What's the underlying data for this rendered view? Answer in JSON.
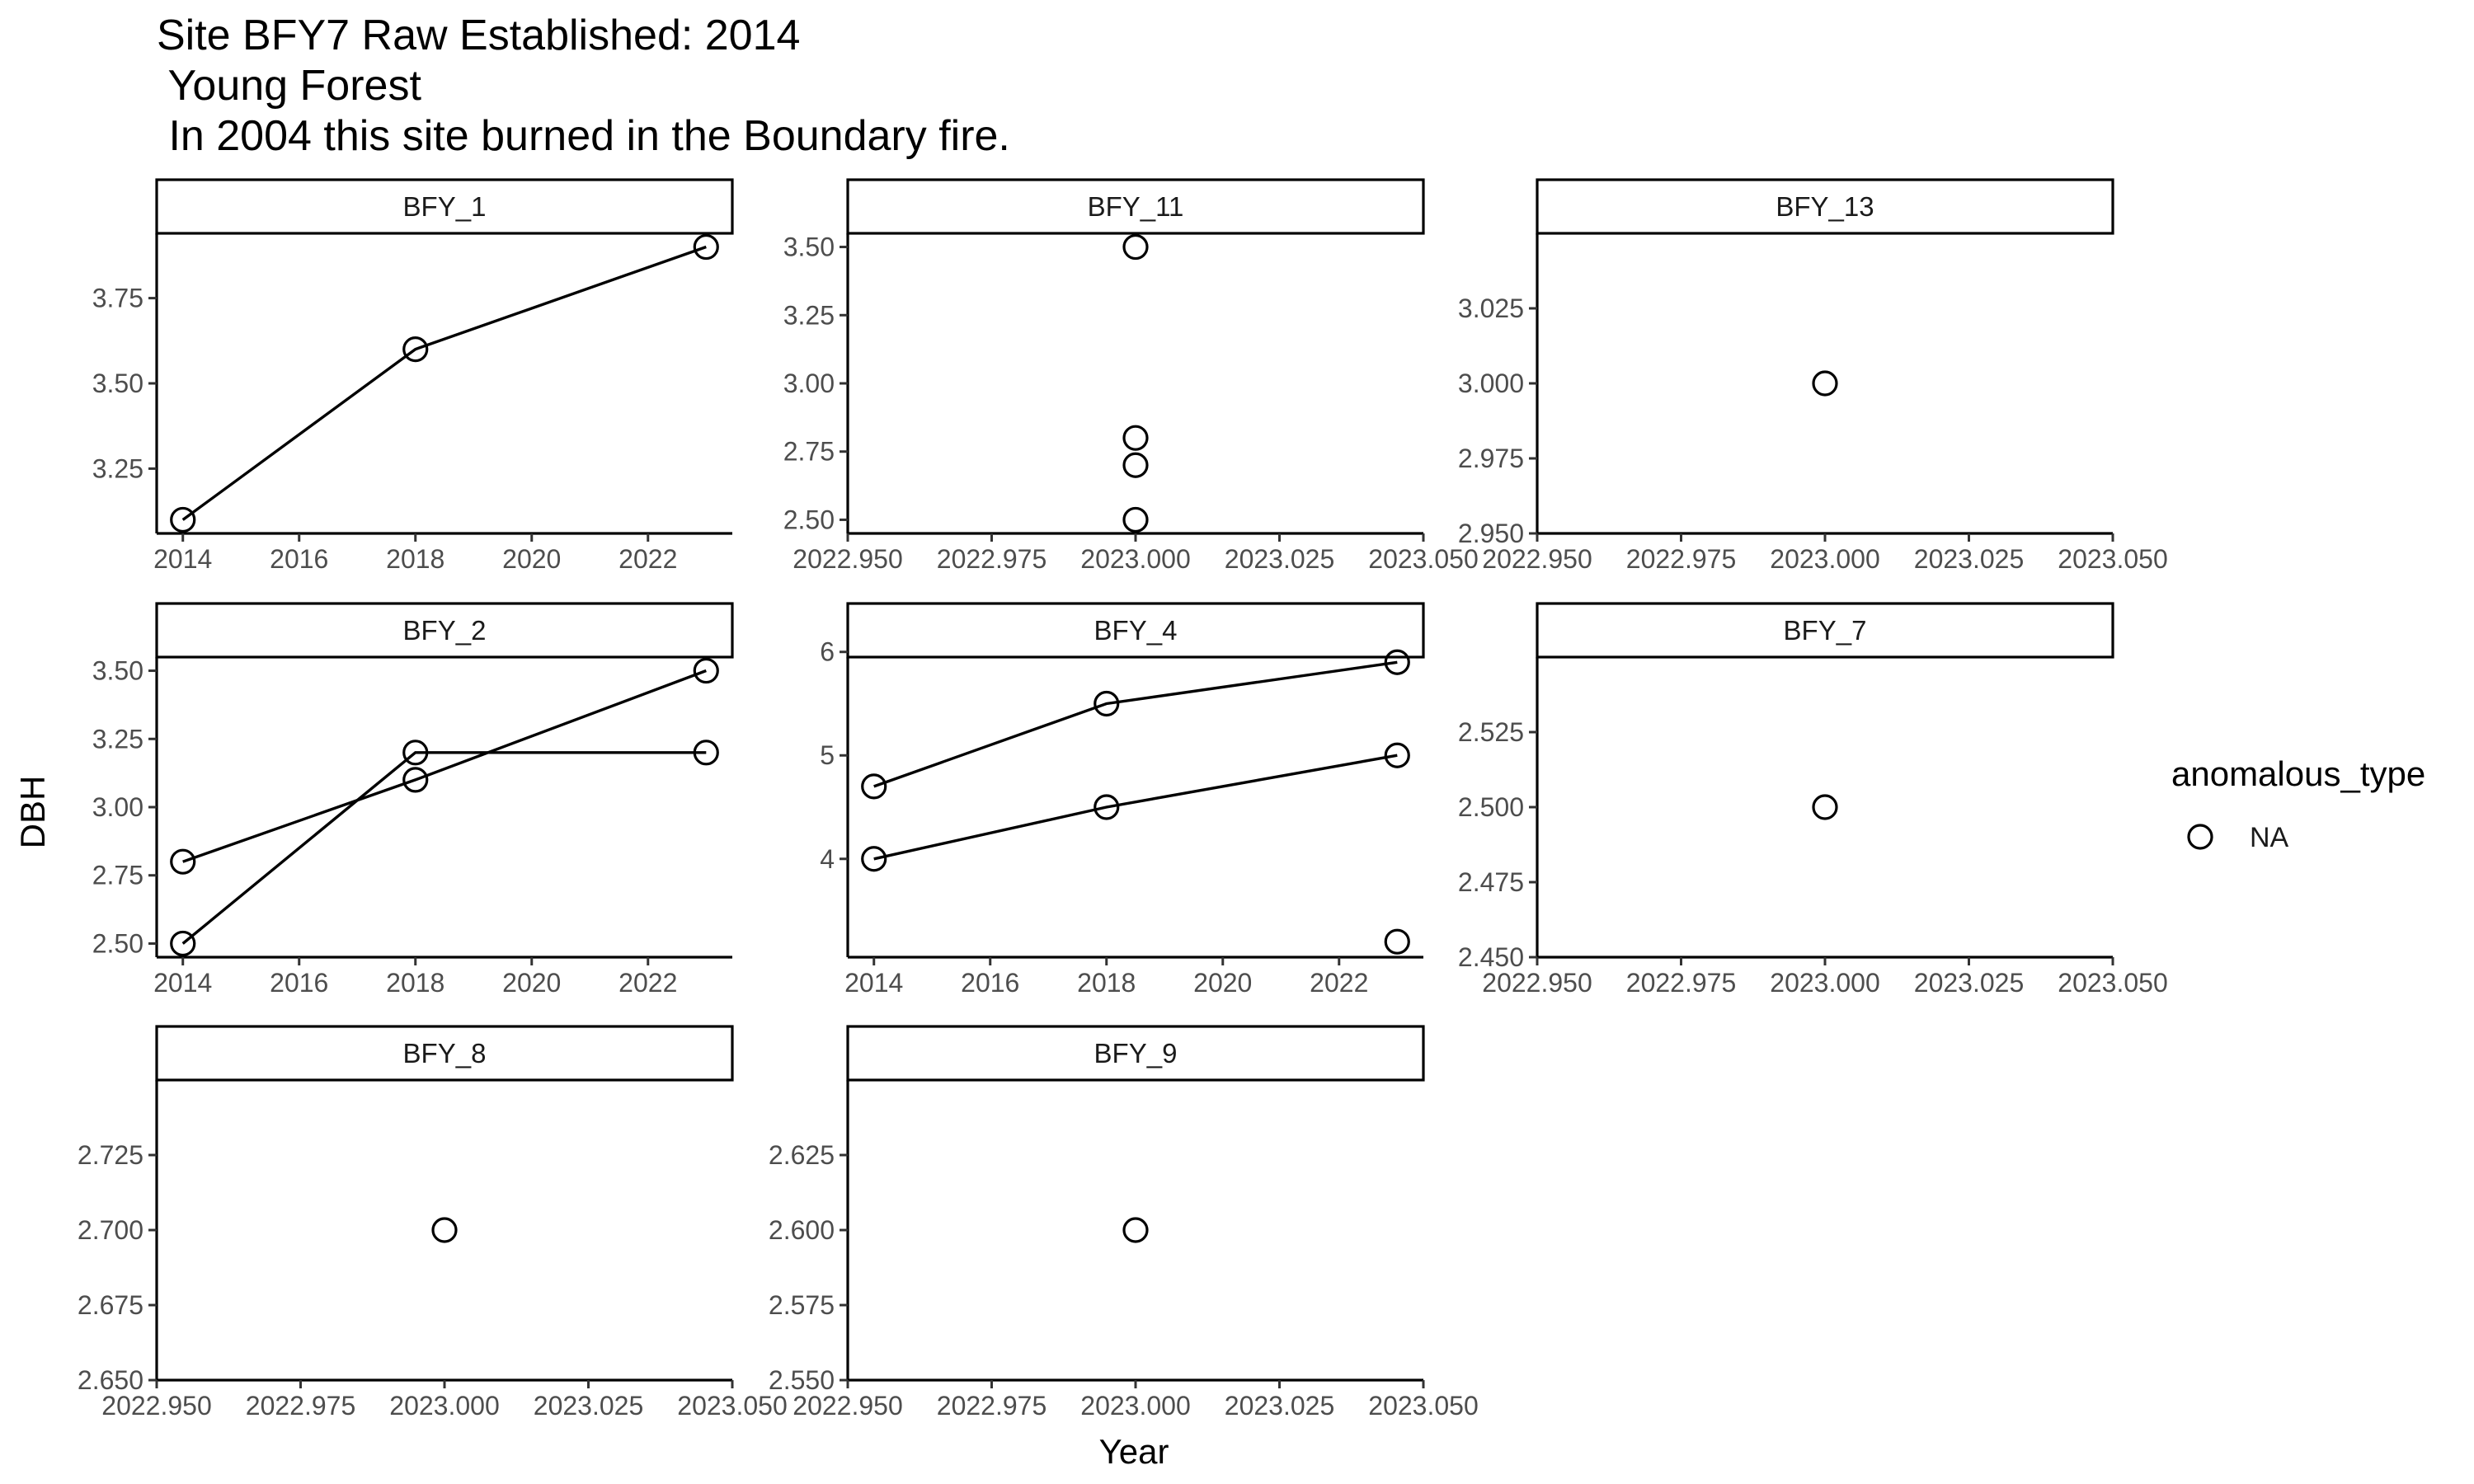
{
  "title": {
    "line1": "Site BFY7 Raw Established: 2014",
    "line2": " Young Forest",
    "line3": " In 2004 this site burned in the Boundary fire."
  },
  "xlabel": "Year",
  "ylabel": "DBH",
  "legend": {
    "title": "anomalous_type",
    "label": "NA"
  },
  "colors": {
    "stroke": "#000000",
    "axis": "#000000",
    "tick_text": "#4d4d4d",
    "background": "#ffffff"
  },
  "chart_data": {
    "type": "line",
    "facets": [
      {
        "name": "BFY_1",
        "xlim": [
          2013.55,
          2023.45
        ],
        "ylim": [
          3.06,
          3.94
        ],
        "xticks": [
          2014,
          2016,
          2018,
          2020,
          2022
        ],
        "xtick_labels": [
          "2014",
          "2016",
          "2018",
          "2020",
          "2022"
        ],
        "yticks": [
          3.25,
          3.5,
          3.75
        ],
        "ytick_labels": [
          "3.25",
          "3.50",
          "3.75"
        ],
        "lines": [
          [
            [
              2014,
              3.1
            ],
            [
              2018,
              3.6
            ],
            [
              2023,
              3.9
            ]
          ]
        ],
        "points": [
          [
            2014,
            3.1
          ],
          [
            2018,
            3.6
          ],
          [
            2023,
            3.9
          ]
        ]
      },
      {
        "name": "BFY_11",
        "xlim": [
          2022.95,
          2023.05
        ],
        "ylim": [
          2.45,
          3.55
        ],
        "xticks": [
          2022.95,
          2022.975,
          2023.0,
          2023.025,
          2023.05
        ],
        "xtick_labels": [
          "2022.950",
          "2022.975",
          "2023.000",
          "2023.025",
          "2023.050"
        ],
        "yticks": [
          2.5,
          2.75,
          3.0,
          3.25,
          3.5
        ],
        "ytick_labels": [
          "2.50",
          "2.75",
          "3.00",
          "3.25",
          "3.50"
        ],
        "lines": [],
        "points": [
          [
            2023,
            3.5
          ],
          [
            2023,
            2.8
          ],
          [
            2023,
            2.7
          ],
          [
            2023,
            2.5
          ]
        ]
      },
      {
        "name": "BFY_13",
        "xlim": [
          2022.95,
          2023.05
        ],
        "ylim": [
          2.95,
          3.05
        ],
        "xticks": [
          2022.95,
          2022.975,
          2023.0,
          2023.025,
          2023.05
        ],
        "xtick_labels": [
          "2022.950",
          "2022.975",
          "2023.000",
          "2023.025",
          "2023.050"
        ],
        "yticks": [
          2.95,
          2.975,
          3.0,
          3.025
        ],
        "ytick_labels": [
          "2.950",
          "2.975",
          "3.000",
          "3.025"
        ],
        "lines": [],
        "points": [
          [
            2023,
            3.0
          ]
        ]
      },
      {
        "name": "BFY_2",
        "xlim": [
          2013.55,
          2023.45
        ],
        "ylim": [
          2.45,
          3.55
        ],
        "xticks": [
          2014,
          2016,
          2018,
          2020,
          2022
        ],
        "xtick_labels": [
          "2014",
          "2016",
          "2018",
          "2020",
          "2022"
        ],
        "yticks": [
          2.5,
          2.75,
          3.0,
          3.25,
          3.5
        ],
        "ytick_labels": [
          "2.50",
          "2.75",
          "3.00",
          "3.25",
          "3.50"
        ],
        "lines": [
          [
            [
              2014,
              2.8
            ],
            [
              2018,
              3.1
            ],
            [
              2023,
              3.5
            ]
          ],
          [
            [
              2014,
              2.5
            ],
            [
              2018,
              3.2
            ],
            [
              2023,
              3.2
            ]
          ]
        ],
        "points": [
          [
            2014,
            2.8
          ],
          [
            2014,
            2.5
          ],
          [
            2018,
            3.2
          ],
          [
            2018,
            3.1
          ],
          [
            2023,
            3.5
          ],
          [
            2023,
            3.2
          ]
        ]
      },
      {
        "name": "BFY_4",
        "xlim": [
          2013.55,
          2023.45
        ],
        "ylim": [
          3.05,
          5.95
        ],
        "xticks": [
          2014,
          2016,
          2018,
          2020,
          2022
        ],
        "xtick_labels": [
          "2014",
          "2016",
          "2018",
          "2020",
          "2022"
        ],
        "yticks": [
          4,
          5,
          6
        ],
        "ytick_labels": [
          "4",
          "5",
          "6"
        ],
        "lines": [
          [
            [
              2014,
              4.7
            ],
            [
              2018,
              5.5
            ],
            [
              2023,
              5.9
            ]
          ],
          [
            [
              2014,
              4.0
            ],
            [
              2018,
              4.5
            ],
            [
              2023,
              5.0
            ]
          ]
        ],
        "points": [
          [
            2014,
            4.7
          ],
          [
            2014,
            4.0
          ],
          [
            2018,
            5.5
          ],
          [
            2018,
            4.5
          ],
          [
            2023,
            5.9
          ],
          [
            2023,
            5.0
          ],
          [
            2023,
            3.2
          ]
        ]
      },
      {
        "name": "BFY_7",
        "xlim": [
          2022.95,
          2023.05
        ],
        "ylim": [
          2.45,
          2.55
        ],
        "xticks": [
          2022.95,
          2022.975,
          2023.0,
          2023.025,
          2023.05
        ],
        "xtick_labels": [
          "2022.950",
          "2022.975",
          "2023.000",
          "2023.025",
          "2023.050"
        ],
        "yticks": [
          2.45,
          2.475,
          2.5,
          2.525
        ],
        "ytick_labels": [
          "2.450",
          "2.475",
          "2.500",
          "2.525"
        ],
        "lines": [],
        "points": [
          [
            2023,
            2.5
          ]
        ]
      },
      {
        "name": "BFY_8",
        "xlim": [
          2022.95,
          2023.05
        ],
        "ylim": [
          2.65,
          2.75
        ],
        "xticks": [
          2022.95,
          2022.975,
          2023.0,
          2023.025,
          2023.05
        ],
        "xtick_labels": [
          "2022.950",
          "2022.975",
          "2023.000",
          "2023.025",
          "2023.050"
        ],
        "yticks": [
          2.65,
          2.675,
          2.7,
          2.725
        ],
        "ytick_labels": [
          "2.650",
          "2.675",
          "2.700",
          "2.725"
        ],
        "lines": [],
        "points": [
          [
            2023,
            2.7
          ]
        ]
      },
      {
        "name": "BFY_9",
        "xlim": [
          2022.95,
          2023.05
        ],
        "ylim": [
          2.55,
          2.65
        ],
        "xticks": [
          2022.95,
          2022.975,
          2023.0,
          2023.025,
          2023.05
        ],
        "xtick_labels": [
          "2022.950",
          "2022.975",
          "2023.000",
          "2023.025",
          "2023.050"
        ],
        "yticks": [
          2.55,
          2.575,
          2.6,
          2.625
        ],
        "ytick_labels": [
          "2.550",
          "2.575",
          "2.600",
          "2.625"
        ],
        "lines": [],
        "points": [
          [
            2023,
            2.6
          ]
        ]
      }
    ]
  }
}
